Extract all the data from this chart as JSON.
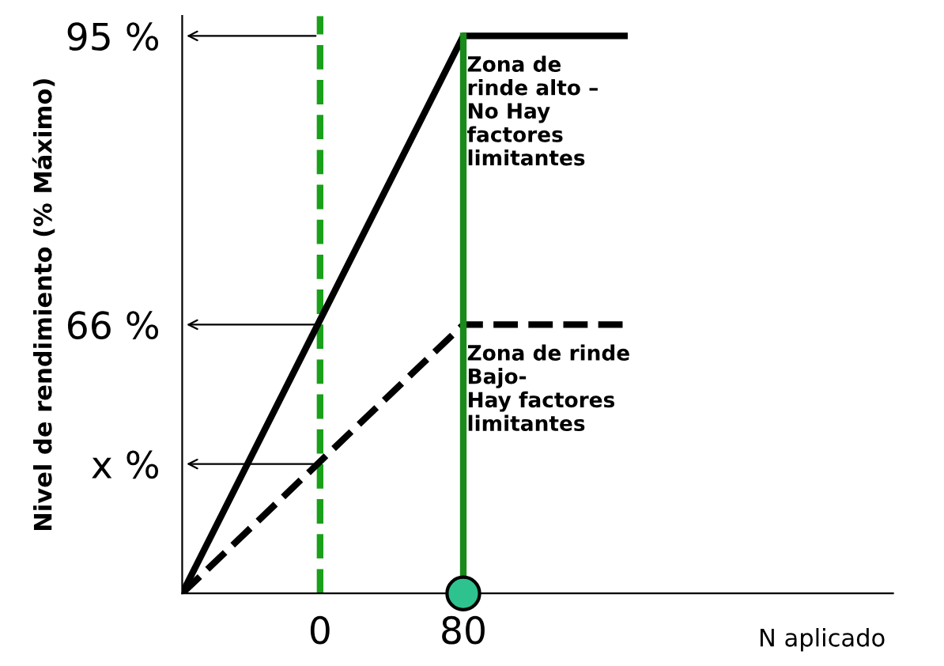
{
  "chart_data": {
    "type": "line",
    "xlabel": "N aplicado",
    "ylabel": "Nivel de rendimiento (% Máximo)",
    "xlim": [
      -77,
      320
    ],
    "ylim": [
      39,
      97
    ],
    "xticks": [
      0,
      80
    ],
    "yticks": [
      {
        "value": 95,
        "label": "95 %"
      },
      {
        "value": 66,
        "label": "66 %"
      },
      {
        "value": 52,
        "label": "x %"
      }
    ],
    "series": [
      {
        "color": "#000000",
        "line_style": "solid",
        "x": [
          -77,
          80,
          170
        ],
        "values": [
          39,
          95,
          95
        ]
      },
      {
        "color": "#000000",
        "line_style": "dashed",
        "x": [
          -77,
          80,
          170
        ],
        "values": [
          39,
          66,
          66
        ]
      },
      {
        "color": "#1a8a1a",
        "line_style": "solid",
        "x": [
          80,
          80
        ],
        "values": [
          95,
          41
        ]
      },
      {
        "type": "scatter",
        "color": "#2ec28e",
        "marker": "circle",
        "x": [
          80
        ],
        "values": [
          39
        ]
      }
    ],
    "ref_lines": [
      {
        "axis": "x",
        "value": 0,
        "color": "#1aa01a",
        "line_style": "dashed"
      }
    ],
    "annotations": [
      {
        "text": "Zona de\nrinde alto –\nNo Hay\nfactores\nlimitantes",
        "x": 82,
        "y": 93
      },
      {
        "text": "Zona de rinde\nBajo-\nHay factores\nlimitantes",
        "x": 82,
        "y": 64
      }
    ],
    "grid": false,
    "legend": false
  }
}
